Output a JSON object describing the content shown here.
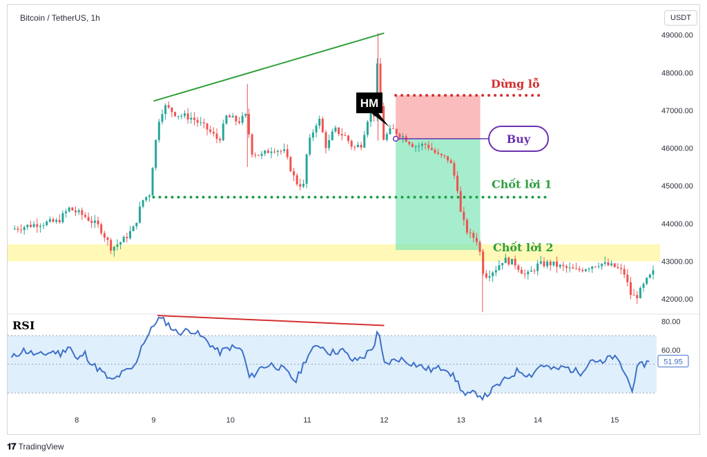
{
  "header": {
    "pair": "Bitcoin / TetherUS, 1h",
    "currency": "USDT"
  },
  "footer": {
    "brand": "TradingView"
  },
  "colors": {
    "up": "#26a69a",
    "down": "#ef5350",
    "trend": "#2f9e3a",
    "rsi_line": "#3d6fc7",
    "rsi_divergence": "#d32f2f",
    "stop": "#d32f2f",
    "buy": "#6a2fb0",
    "target": "#2e9e3f"
  },
  "labels": {
    "hm": "HM",
    "stop_loss": "Dừng lỗ",
    "buy": "Buy",
    "take_profit_1": "Chốt lời 1",
    "take_profit_2": "Chốt lời 2",
    "rsi": "RSI",
    "rsi_value": "51.95"
  },
  "chart_data": [
    {
      "type": "candlestick",
      "series_name": "BTCUSDT 1h",
      "y_ticks": [
        "49000.00",
        "48000.00",
        "47000.00",
        "46000.00",
        "45000.00",
        "44000.00",
        "43000.00",
        "42000.00"
      ],
      "x_ticks": [
        "8",
        "9",
        "10",
        "11",
        "12",
        "13",
        "14",
        "15"
      ],
      "ylim": [
        41600,
        49800
      ],
      "x_domain_days": [
        7.1,
        15.5
      ],
      "anchors": [
        [
          7.15,
          43850
        ],
        [
          7.5,
          44000
        ],
        [
          7.75,
          44050
        ],
        [
          7.9,
          44400
        ],
        [
          8.1,
          44200
        ],
        [
          8.3,
          43900
        ],
        [
          8.45,
          43350
        ],
        [
          8.6,
          43550
        ],
        [
          8.75,
          43900
        ],
        [
          8.85,
          44600
        ],
        [
          8.95,
          44800
        ],
        [
          9.0,
          45800
        ],
        [
          9.08,
          46900
        ],
        [
          9.15,
          47100
        ],
        [
          9.3,
          46900
        ],
        [
          9.5,
          46800
        ],
        [
          9.7,
          46500
        ],
        [
          9.85,
          46200
        ],
        [
          9.95,
          46850
        ],
        [
          10.1,
          46700
        ],
        [
          10.2,
          46850
        ],
        [
          10.28,
          45900
        ],
        [
          10.4,
          45800
        ],
        [
          10.55,
          46000
        ],
        [
          10.7,
          45900
        ],
        [
          10.85,
          45100
        ],
        [
          10.95,
          45000
        ],
        [
          11.0,
          46000
        ],
        [
          11.1,
          46600
        ],
        [
          11.15,
          46800
        ],
        [
          11.25,
          46000
        ],
        [
          11.35,
          46500
        ],
        [
          11.5,
          46300
        ],
        [
          11.6,
          46000
        ],
        [
          11.7,
          46100
        ],
        [
          11.8,
          46900
        ],
        [
          11.88,
          46900
        ],
        [
          11.92,
          48600
        ],
        [
          11.97,
          46200
        ],
        [
          12.1,
          46500
        ],
        [
          12.25,
          46300
        ],
        [
          12.4,
          46050
        ],
        [
          12.55,
          46100
        ],
        [
          12.7,
          45800
        ],
        [
          12.85,
          45700
        ],
        [
          12.95,
          45000
        ],
        [
          13.0,
          44200
        ],
        [
          13.1,
          43700
        ],
        [
          13.2,
          43600
        ],
        [
          13.25,
          43200
        ],
        [
          13.3,
          42600
        ],
        [
          13.45,
          42800
        ],
        [
          13.55,
          43050
        ],
        [
          13.7,
          42950
        ],
        [
          13.85,
          42600
        ],
        [
          14.0,
          42900
        ],
        [
          14.15,
          42950
        ],
        [
          14.3,
          42850
        ],
        [
          14.5,
          42750
        ],
        [
          14.65,
          42850
        ],
        [
          14.8,
          42950
        ],
        [
          15.0,
          42850
        ],
        [
          15.12,
          42700
        ],
        [
          15.22,
          42050
        ],
        [
          15.3,
          42100
        ],
        [
          15.42,
          42500
        ],
        [
          15.5,
          42700
        ]
      ],
      "price_annotations": {
        "stop_loss": 47400,
        "entry": 46250,
        "take_profit_1": 44700,
        "take_profit_2": 43300,
        "support_zone": [
          43000,
          43450
        ]
      },
      "trendline": {
        "from": [
          9.0,
          47250
        ],
        "to": [
          12.0,
          49050
        ]
      }
    },
    {
      "type": "line",
      "series_name": "RSI",
      "y_ticks": [
        "80.00",
        "60.00"
      ],
      "ylim": [
        20,
        84
      ],
      "overbought": 70,
      "oversold": 30,
      "current": 51.95,
      "anchors": [
        [
          7.15,
          54
        ],
        [
          7.3,
          60
        ],
        [
          7.5,
          56
        ],
        [
          7.7,
          59
        ],
        [
          7.8,
          57
        ],
        [
          7.9,
          64
        ],
        [
          8.0,
          52
        ],
        [
          8.1,
          58
        ],
        [
          8.2,
          50
        ],
        [
          8.3,
          46
        ],
        [
          8.45,
          38
        ],
        [
          8.6,
          44
        ],
        [
          8.75,
          48
        ],
        [
          8.85,
          64
        ],
        [
          8.95,
          72
        ],
        [
          9.05,
          82
        ],
        [
          9.15,
          80
        ],
        [
          9.3,
          72
        ],
        [
          9.5,
          74
        ],
        [
          9.7,
          66
        ],
        [
          9.85,
          58
        ],
        [
          10.0,
          62
        ],
        [
          10.15,
          60
        ],
        [
          10.25,
          40
        ],
        [
          10.4,
          48
        ],
        [
          10.55,
          50
        ],
        [
          10.7,
          46
        ],
        [
          10.85,
          38
        ],
        [
          11.0,
          56
        ],
        [
          11.15,
          64
        ],
        [
          11.3,
          58
        ],
        [
          11.45,
          60
        ],
        [
          11.6,
          52
        ],
        [
          11.75,
          56
        ],
        [
          11.88,
          64
        ],
        [
          11.92,
          74
        ],
        [
          12.0,
          50
        ],
        [
          12.2,
          54
        ],
        [
          12.4,
          50
        ],
        [
          12.6,
          46
        ],
        [
          12.8,
          48
        ],
        [
          12.95,
          38
        ],
        [
          13.05,
          28
        ],
        [
          13.2,
          30
        ],
        [
          13.3,
          27
        ],
        [
          13.45,
          34
        ],
        [
          13.6,
          40
        ],
        [
          13.75,
          46
        ],
        [
          13.9,
          42
        ],
        [
          14.05,
          50
        ],
        [
          14.2,
          46
        ],
        [
          14.35,
          48
        ],
        [
          14.55,
          44
        ],
        [
          14.7,
          54
        ],
        [
          14.85,
          50
        ],
        [
          14.95,
          56
        ],
        [
          15.05,
          52
        ],
        [
          15.15,
          42
        ],
        [
          15.22,
          32
        ],
        [
          15.3,
          48
        ],
        [
          15.45,
          51.95
        ]
      ],
      "divergence_line": {
        "from": [
          9.05,
          84
        ],
        "to": [
          12.0,
          77
        ]
      }
    }
  ]
}
